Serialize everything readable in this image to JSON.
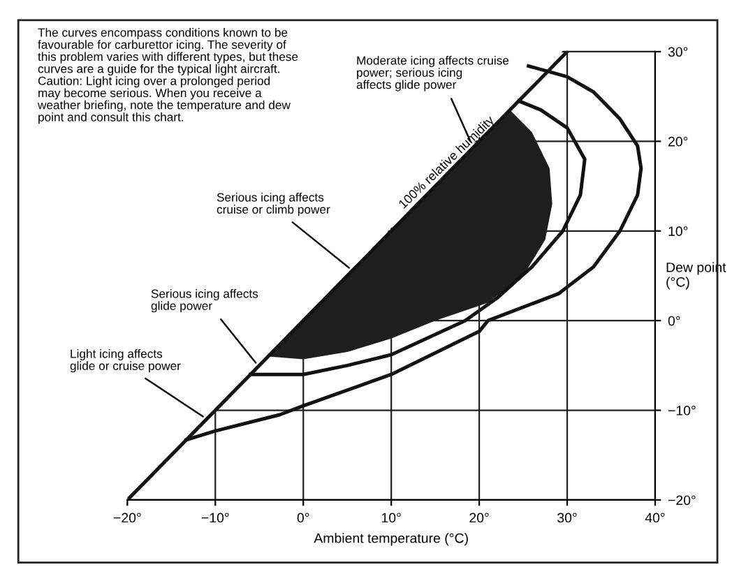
{
  "chart_data": {
    "type": "line",
    "xlabel": "Ambient temperature (°C)",
    "ylabel": "Dew point\n(°C)",
    "xlim": [
      -20,
      40
    ],
    "ylim": [
      -20,
      30
    ],
    "xticks": [
      {
        "value": -20,
        "label": "−20°"
      },
      {
        "value": -10,
        "label": "−10°"
      },
      {
        "value": 0,
        "label": "0°"
      },
      {
        "value": 10,
        "label": "10°"
      },
      {
        "value": 20,
        "label": "20°"
      },
      {
        "value": 30,
        "label": "30°"
      },
      {
        "value": 40,
        "label": "40°"
      }
    ],
    "yticks": [
      {
        "value": -20,
        "label": "−20°"
      },
      {
        "value": -10,
        "label": "−10°"
      },
      {
        "value": 0,
        "label": "0°"
      },
      {
        "value": 10,
        "label": "10°"
      },
      {
        "value": 20,
        "label": "20°"
      },
      {
        "value": 30,
        "label": "30°"
      }
    ],
    "grid": true,
    "marker": "none",
    "line_style": "solid",
    "series": [
      {
        "type": "area",
        "color": "#1e1e1e",
        "x": [
          -4,
          0,
          5,
          10,
          15,
          21,
          25,
          27.5,
          28.3,
          28,
          26,
          23.5
        ],
        "values": [
          -4,
          -4.3,
          -3.5,
          -2,
          0,
          2,
          5,
          9,
          13,
          17,
          21,
          23.5
        ]
      },
      {
        "name": "100% relative humidity",
        "color": "#111111",
        "x": [
          -20,
          30
        ],
        "values": [
          -20,
          30
        ]
      },
      {
        "color": "#111111",
        "x": [
          -6,
          0,
          5,
          10,
          18.4,
          22,
          26,
          29.5,
          31.5,
          32,
          30,
          27,
          24.5
        ],
        "values": [
          -6,
          -6,
          -5,
          -3.8,
          0,
          2.5,
          6,
          10,
          14,
          18,
          21.5,
          23.5,
          24.5
        ]
      },
      {
        "color": "#111111",
        "x": [
          -13.3,
          -10,
          -2.7,
          0,
          10,
          20,
          21,
          29,
          33,
          36,
          38,
          38.4,
          38,
          36,
          33,
          30,
          25.6
        ],
        "values": [
          -13.3,
          -12.3,
          -10.5,
          -9.5,
          -6,
          -1.2,
          0,
          3,
          6,
          10,
          14,
          17,
          19.5,
          22.5,
          25.5,
          27.2,
          28.4
        ]
      }
    ],
    "annotations": [
      "The curves encompass conditions known to be\nfavourable for carburettor icing. The severity of\nthis problem varies with different types, but these\ncurves are a guide for the typical light aircraft.\nCaution: Light icing over a prolonged period\nmay become serious. When you receive a\nweather briefing, note the temperature and dew\npoint and consult this chart.",
      {
        "text": "Moderate icing affects cruise\npower; serious icing\naffects glide power",
        "x": 19,
        "y": 20
      },
      {
        "text": "Serious icing affects\ncruise or climb power",
        "x": 5.2,
        "y": 5.9
      },
      {
        "text": "Serious icing affects\nglide power",
        "x": -5.4,
        "y": -4.7
      },
      {
        "text": "Light icing affects\nglide or cruise power",
        "x": -11.4,
        "y": -10.7
      }
    ]
  }
}
